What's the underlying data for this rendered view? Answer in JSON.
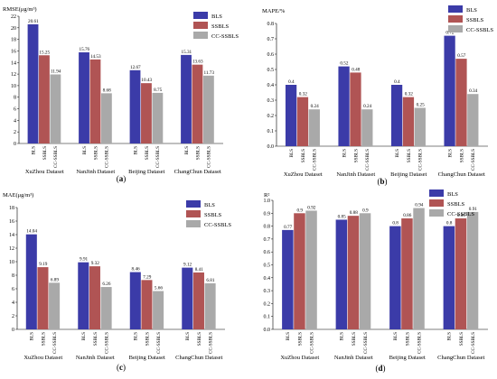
{
  "figure": {
    "series_colors": [
      "#3b3ba8",
      "#b05454",
      "#a9a9a9"
    ]
  },
  "chart_data": [
    {
      "type": "bar",
      "panel_label": "(a)",
      "ylabel": "RMSE(μg/m³)",
      "ylim": [
        0,
        22
      ],
      "yticks": [
        0,
        2,
        4,
        6,
        8,
        10,
        12,
        14,
        16,
        18,
        20,
        22
      ],
      "categories": [
        "XuZhou Dataset",
        "NanJinh Dataset",
        "Beijing Dataset",
        "ChangChun Dataset"
      ],
      "bar_labels": [
        "BLS",
        "SSBLS",
        "CC-SSBLS"
      ],
      "series": [
        {
          "name": "BLS",
          "values": [
            20.61,
            15.76,
            12.67,
            15.31
          ]
        },
        {
          "name": "SSBLS",
          "values": [
            15.25,
            14.53,
            10.43,
            13.63
          ]
        },
        {
          "name": "CC-SSBLS",
          "values": [
            11.94,
            8.68,
            8.75,
            11.73
          ]
        }
      ],
      "value_labels": [
        [
          "20.61",
          "15.76",
          "12.67",
          "15.31"
        ],
        [
          "15.25",
          "14.53",
          "10.43",
          "13.63"
        ],
        [
          "11.94",
          "8.68",
          "8.75",
          "11.73"
        ]
      ],
      "legend": "top-right"
    },
    {
      "type": "bar",
      "panel_label": "(b)",
      "ylabel": "MAPE/%",
      "ylim": [
        0,
        0.8
      ],
      "yticks": [
        0,
        0.1,
        0.2,
        0.3,
        0.4,
        0.5,
        0.6,
        0.7,
        0.8
      ],
      "categories": [
        "XuZhou Dataset",
        "NanJinh Dataset",
        "Beijing Dataset",
        "ChangChun Dataset"
      ],
      "bar_labels": [
        "BLS",
        "SSBLS",
        "CC-SSBLS"
      ],
      "series": [
        {
          "name": "BLS",
          "values": [
            0.4,
            0.52,
            0.4,
            0.72
          ]
        },
        {
          "name": "SSBLS",
          "values": [
            0.32,
            0.48,
            0.32,
            0.57
          ]
        },
        {
          "name": "CC-SSBLS",
          "values": [
            0.24,
            0.24,
            0.25,
            0.34
          ]
        }
      ],
      "value_labels": [
        [
          "0.4",
          "0.52",
          "0.4",
          "0.72"
        ],
        [
          "0.32",
          "0.48",
          "0.32",
          "0.57"
        ],
        [
          "0.24",
          "0.24",
          "0.25",
          "0.34"
        ]
      ],
      "legend": "top-right"
    },
    {
      "type": "bar",
      "panel_label": "(c)",
      "ylabel": "MAE(μg/m³)",
      "ylim": [
        0,
        18
      ],
      "yticks": [
        0,
        2,
        4,
        6,
        8,
        10,
        12,
        14,
        16,
        18
      ],
      "categories": [
        "XuZhou Dataset",
        "NanJinh Dataset",
        "Beijing Dataset",
        "ChangChun Dataset"
      ],
      "bar_labels": [
        "BLS",
        "SSBLS",
        "CC-SSBLS"
      ],
      "series": [
        {
          "name": "BLS",
          "values": [
            14.04,
            9.91,
            8.46,
            9.12
          ]
        },
        {
          "name": "SSBLS",
          "values": [
            9.19,
            9.32,
            7.29,
            8.41
          ]
        },
        {
          "name": "CC-SSBLS",
          "values": [
            6.89,
            6.26,
            5.66,
            6.81
          ]
        }
      ],
      "value_labels": [
        [
          "14.04",
          "9.91",
          "8.46",
          "9.12"
        ],
        [
          "9.19",
          "9.32",
          "7.29",
          "8.41"
        ],
        [
          "6.89",
          "6.26",
          "5.66",
          "6.81"
        ]
      ],
      "legend": "top-right"
    },
    {
      "type": "bar",
      "panel_label": "(d)",
      "ylabel": "R²",
      "ylim": [
        0,
        1
      ],
      "yticks": [
        0,
        0.1,
        0.2,
        0.3,
        0.4,
        0.5,
        0.6,
        0.7,
        0.8,
        0.9,
        1
      ],
      "categories": [
        "XuZhou Dataset",
        "NanJinh Dataset",
        "Beijing Dataset",
        "ChangChun Dataset"
      ],
      "bar_labels": [
        "BLS",
        "SSBLS",
        "CC-SSBLS"
      ],
      "series": [
        {
          "name": "BLS",
          "values": [
            0.77,
            0.85,
            0.8,
            0.8
          ]
        },
        {
          "name": "SSBLS",
          "values": [
            0.9,
            0.88,
            0.86,
            0.86
          ]
        },
        {
          "name": "CC-SSBLS",
          "values": [
            0.92,
            0.9,
            0.94,
            0.91
          ]
        }
      ],
      "value_labels": [
        [
          "0.77",
          "0.85",
          "0.8",
          "0.8"
        ],
        [
          "0.9",
          "0.88",
          "0.86",
          "0.86"
        ],
        [
          "0.92",
          "0.9",
          "0.94",
          "0.91"
        ]
      ],
      "legend": "top-right"
    }
  ]
}
